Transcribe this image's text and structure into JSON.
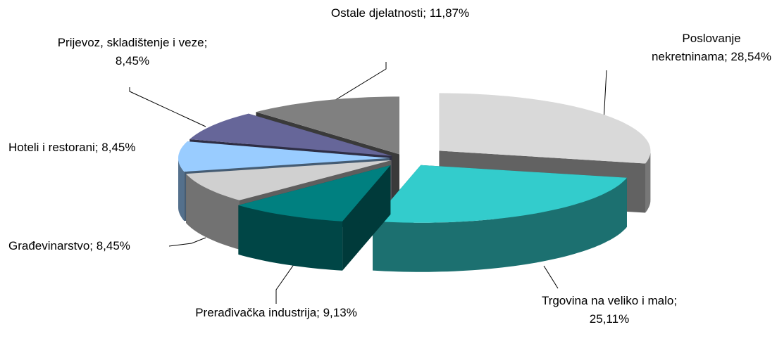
{
  "chart_data": {
    "type": "pie3d",
    "values": [
      28.54,
      25.11,
      9.13,
      8.45,
      8.45,
      8.45,
      11.87
    ],
    "value_labels": [
      "Poslovanje nekretninama; 28,54%",
      "Trgovina na veliko i malo; 25,11%",
      "Prerađivačka industrija; 9,13%",
      "Građevinarstvo; 8,45%",
      "Hoteli i restorani; 8,45%",
      "Prijevoz, skladištenje i veze; 8,45%",
      "Ostale djelatnosti; 11,87%"
    ],
    "colors": [
      "#d9d9d9",
      "#33cccc",
      "#008080",
      "#d0d0d0",
      "#99ccff",
      "#666699",
      "#808080"
    ]
  }
}
